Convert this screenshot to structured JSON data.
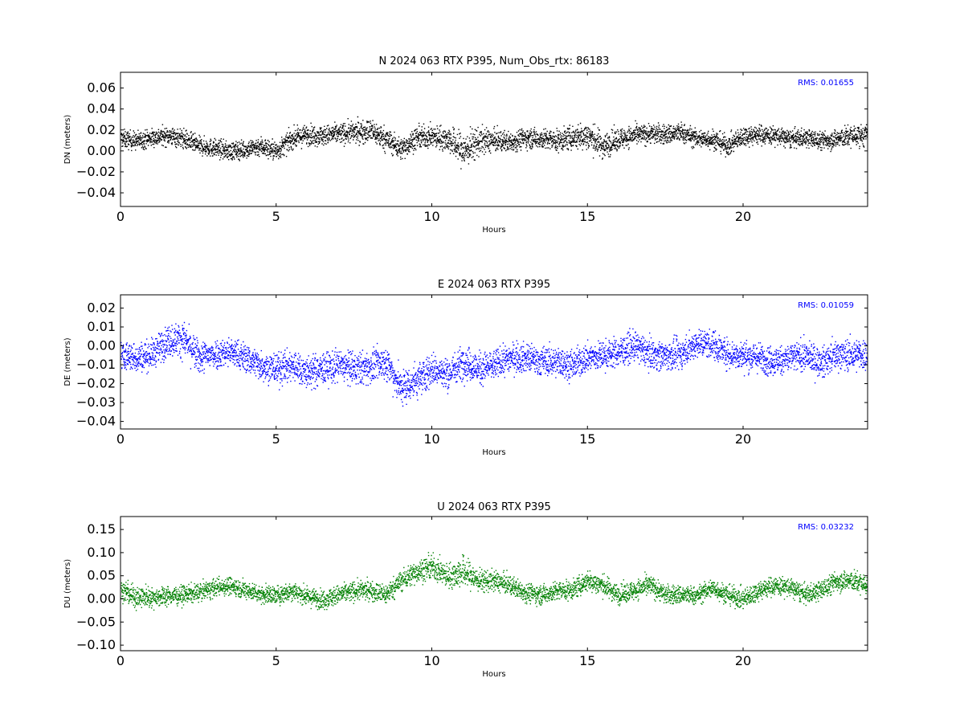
{
  "chart_data": [
    {
      "type": "scatter",
      "title": "N 2024 063 RTX  P395, Num_Obs_rtx: 86183",
      "xlabel": "Hours",
      "ylabel": "DN (meters)",
      "annotation": "RMS:  0.01655",
      "color": "#000000",
      "annotation_color": "#0000ff",
      "xlim": [
        0,
        24
      ],
      "ylim": [
        -0.053,
        0.075
      ],
      "xticks": [
        0,
        5,
        10,
        15,
        20
      ],
      "yticks": [
        -0.04,
        -0.02,
        0.0,
        0.02,
        0.04,
        0.06
      ],
      "ytick_labels": [
        "−0.04",
        "−0.02",
        "0.00",
        "0.02",
        "0.04",
        "0.06"
      ],
      "x": [
        0,
        0.5,
        1,
        1.5,
        2,
        2.5,
        3,
        3.5,
        4,
        4.5,
        5,
        5.5,
        6,
        6.5,
        7,
        7.5,
        8,
        8.5,
        9,
        9.5,
        10,
        10.5,
        11,
        11.5,
        12,
        12.5,
        13,
        13.5,
        14,
        14.5,
        15,
        15.5,
        16,
        16.5,
        17,
        17.5,
        18,
        18.5,
        19,
        19.5,
        20,
        20.5,
        21,
        21.5,
        22,
        22.5,
        23,
        23.5,
        24
      ],
      "y": [
        0.012,
        0.01,
        0.013,
        0.015,
        0.012,
        0.005,
        0.003,
        0.0,
        0.002,
        0.005,
        0.0,
        0.012,
        0.016,
        0.015,
        0.017,
        0.018,
        0.02,
        0.012,
        0.002,
        0.013,
        0.014,
        0.012,
        0.0,
        0.01,
        0.01,
        0.009,
        0.013,
        0.012,
        0.01,
        0.013,
        0.015,
        0.005,
        0.012,
        0.015,
        0.017,
        0.016,
        0.018,
        0.012,
        0.012,
        0.005,
        0.015,
        0.016,
        0.015,
        0.012,
        0.013,
        0.01,
        0.012,
        0.015,
        0.015
      ],
      "spread": [
        0.01,
        0.01,
        0.01,
        0.01,
        0.011,
        0.01,
        0.01,
        0.01,
        0.01,
        0.011,
        0.011,
        0.011,
        0.011,
        0.011,
        0.011,
        0.012,
        0.013,
        0.013,
        0.012,
        0.012,
        0.012,
        0.014,
        0.02,
        0.016,
        0.012,
        0.011,
        0.011,
        0.011,
        0.012,
        0.013,
        0.016,
        0.014,
        0.012,
        0.011,
        0.011,
        0.011,
        0.011,
        0.01,
        0.011,
        0.011,
        0.011,
        0.011,
        0.01,
        0.01,
        0.01,
        0.01,
        0.011,
        0.012,
        0.012
      ]
    },
    {
      "type": "scatter",
      "title": "E 2024 063 RTX  P395",
      "xlabel": "Hours",
      "ylabel": "DE (meters)",
      "annotation": "RMS:  0.01059",
      "color": "#0000ff",
      "annotation_color": "#0000ff",
      "xlim": [
        0,
        24
      ],
      "ylim": [
        -0.044,
        0.027
      ],
      "xticks": [
        0,
        5,
        10,
        15,
        20
      ],
      "yticks": [
        -0.04,
        -0.03,
        -0.02,
        -0.01,
        0.0,
        0.01,
        0.02
      ],
      "ytick_labels": [
        "−0.04",
        "−0.03",
        "−0.02",
        "−0.01",
        "0.00",
        "0.01",
        "0.02"
      ],
      "x": [
        0,
        0.5,
        1,
        1.5,
        2,
        2.5,
        3,
        3.5,
        4,
        4.5,
        5,
        5.5,
        6,
        6.5,
        7,
        7.5,
        8,
        8.5,
        9,
        9.5,
        10,
        10.5,
        11,
        11.5,
        12,
        12.5,
        13,
        13.5,
        14,
        14.5,
        15,
        15.5,
        16,
        16.5,
        17,
        17.5,
        18,
        18.5,
        19,
        19.5,
        20,
        20.5,
        21,
        21.5,
        22,
        22.5,
        23,
        23.5,
        24
      ],
      "y": [
        -0.005,
        -0.006,
        -0.004,
        0.003,
        0.004,
        -0.006,
        -0.004,
        -0.003,
        -0.006,
        -0.01,
        -0.012,
        -0.01,
        -0.014,
        -0.012,
        -0.01,
        -0.012,
        -0.011,
        -0.008,
        -0.022,
        -0.018,
        -0.012,
        -0.015,
        -0.008,
        -0.012,
        -0.01,
        -0.006,
        -0.006,
        -0.008,
        -0.008,
        -0.01,
        -0.006,
        -0.005,
        -0.003,
        0.0,
        -0.004,
        -0.005,
        -0.004,
        0.002,
        0.001,
        -0.004,
        -0.005,
        -0.006,
        -0.008,
        -0.006,
        -0.005,
        -0.009,
        -0.004,
        -0.005,
        -0.004
      ],
      "spread": [
        0.009,
        0.009,
        0.009,
        0.01,
        0.01,
        0.01,
        0.009,
        0.009,
        0.009,
        0.009,
        0.01,
        0.01,
        0.01,
        0.01,
        0.01,
        0.01,
        0.01,
        0.01,
        0.011,
        0.011,
        0.01,
        0.01,
        0.01,
        0.01,
        0.009,
        0.009,
        0.009,
        0.009,
        0.009,
        0.009,
        0.009,
        0.009,
        0.009,
        0.009,
        0.009,
        0.009,
        0.009,
        0.009,
        0.009,
        0.009,
        0.009,
        0.009,
        0.009,
        0.009,
        0.009,
        0.009,
        0.009,
        0.01,
        0.01
      ]
    },
    {
      "type": "scatter",
      "title": "U 2024 063 RTX  P395",
      "xlabel": "Hours",
      "ylabel": "DU (meters)",
      "annotation": "RMS:  0.03232",
      "color": "#008000",
      "annotation_color": "#0000ff",
      "xlim": [
        0,
        24
      ],
      "ylim": [
        -0.112,
        0.178
      ],
      "xticks": [
        0,
        5,
        10,
        15,
        20
      ],
      "yticks": [
        -0.1,
        -0.05,
        0.0,
        0.05,
        0.1,
        0.15
      ],
      "ytick_labels": [
        "−0.10",
        "−0.05",
        "0.00",
        "0.05",
        "0.10",
        "0.15"
      ],
      "x": [
        0,
        0.5,
        1,
        1.5,
        2,
        2.5,
        3,
        3.5,
        4,
        4.5,
        5,
        5.5,
        6,
        6.5,
        7,
        7.5,
        8,
        8.5,
        9,
        9.5,
        10,
        10.5,
        11,
        11.5,
        12,
        12.5,
        13,
        13.5,
        14,
        14.5,
        15,
        15.5,
        16,
        16.5,
        17,
        17.5,
        18,
        18.5,
        19,
        19.5,
        20,
        20.5,
        21,
        21.5,
        22,
        22.5,
        23,
        23.5,
        24
      ],
      "y": [
        0.02,
        0.005,
        0.005,
        0.008,
        0.01,
        0.015,
        0.025,
        0.03,
        0.02,
        0.012,
        0.008,
        0.02,
        0.005,
        0.0,
        0.01,
        0.018,
        0.02,
        0.01,
        0.04,
        0.06,
        0.07,
        0.05,
        0.06,
        0.04,
        0.04,
        0.03,
        0.015,
        0.01,
        0.018,
        0.02,
        0.04,
        0.03,
        0.01,
        0.02,
        0.03,
        0.01,
        0.01,
        0.008,
        0.025,
        0.01,
        0.0,
        0.02,
        0.03,
        0.025,
        0.01,
        0.02,
        0.04,
        0.04,
        0.03
      ],
      "spread": [
        0.026,
        0.03,
        0.024,
        0.024,
        0.022,
        0.022,
        0.022,
        0.022,
        0.022,
        0.022,
        0.024,
        0.024,
        0.022,
        0.024,
        0.024,
        0.024,
        0.024,
        0.026,
        0.026,
        0.028,
        0.03,
        0.03,
        0.04,
        0.028,
        0.026,
        0.024,
        0.024,
        0.024,
        0.024,
        0.024,
        0.026,
        0.026,
        0.024,
        0.024,
        0.026,
        0.024,
        0.024,
        0.022,
        0.024,
        0.024,
        0.026,
        0.024,
        0.024,
        0.024,
        0.024,
        0.024,
        0.026,
        0.026,
        0.026
      ]
    }
  ]
}
